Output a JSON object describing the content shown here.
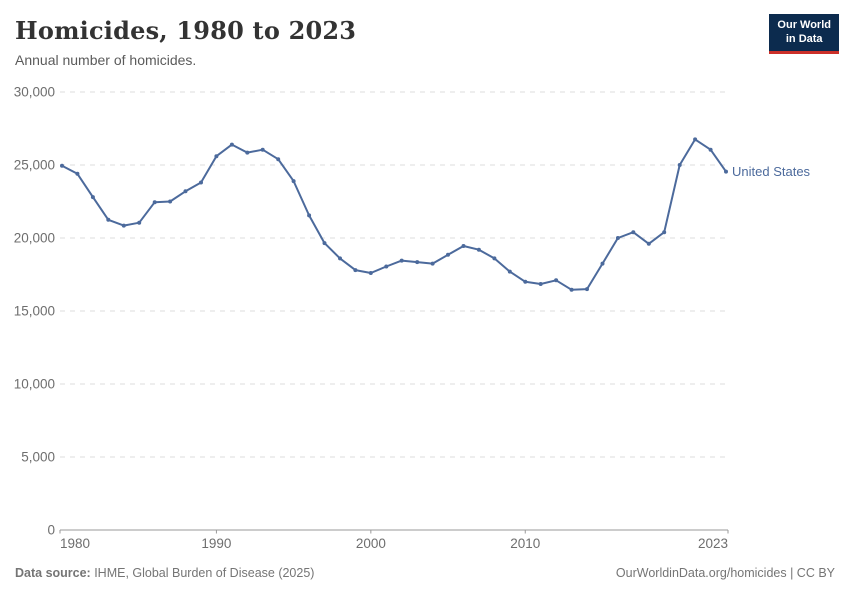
{
  "header": {
    "title": "Homicides, 1980 to 2023",
    "subtitle": "Annual number of homicides.",
    "logo": {
      "line1": "Our World",
      "line2": "in Data"
    }
  },
  "chart_data": {
    "type": "line",
    "title": "Homicides, 1980 to 2023",
    "subtitle": "Annual number of homicides.",
    "xlabel": "",
    "ylabel": "",
    "xlim": [
      1980,
      2023
    ],
    "ylim": [
      0,
      30000
    ],
    "grid": true,
    "legend_position": "end-of-line",
    "x_ticks": [
      1980,
      1990,
      2000,
      2010,
      2023
    ],
    "x_tick_labels": [
      "1980",
      "1990",
      "2000",
      "2010",
      "2023"
    ],
    "y_ticks": [
      0,
      5000,
      10000,
      15000,
      20000,
      25000,
      30000
    ],
    "y_tick_labels": [
      "0",
      "5,000",
      "10,000",
      "15,000",
      "20,000",
      "25,000",
      "30,000"
    ],
    "series": [
      {
        "name": "United States",
        "color": "#4C6A9C",
        "x": [
          1980,
          1981,
          1982,
          1983,
          1984,
          1985,
          1986,
          1987,
          1988,
          1989,
          1990,
          1991,
          1992,
          1993,
          1994,
          1995,
          1996,
          1997,
          1998,
          1999,
          2000,
          2001,
          2002,
          2003,
          2004,
          2005,
          2006,
          2007,
          2008,
          2009,
          2010,
          2011,
          2012,
          2013,
          2014,
          2015,
          2016,
          2017,
          2018,
          2019,
          2020,
          2021,
          2022,
          2023
        ],
        "values": [
          24950,
          24400,
          22800,
          21250,
          20850,
          21050,
          22450,
          22500,
          23200,
          23800,
          25600,
          26400,
          25850,
          26050,
          25400,
          23900,
          21550,
          19650,
          18600,
          17800,
          17600,
          18050,
          18450,
          18350,
          18250,
          18850,
          19450,
          19200,
          18600,
          17700,
          17000,
          16850,
          17100,
          16450,
          16500,
          18250,
          20000,
          20400,
          19600,
          20400,
          25000,
          26750,
          26050,
          24550
        ]
      }
    ]
  },
  "footer": {
    "source_label": "Data source:",
    "source_text": " IHME, Global Burden of Disease (2025)",
    "rights": "OurWorldinData.org/homicides | CC BY"
  },
  "colors": {
    "line": "#4C6A9C",
    "gridline": "#dddddd",
    "axis": "#999999",
    "tick_label": "#6e6e6e",
    "title": "#333333",
    "subtitle": "#5b5b5b",
    "footer": "#757575",
    "logo_bg": "#0c2b4e",
    "logo_red": "#cc3029"
  }
}
